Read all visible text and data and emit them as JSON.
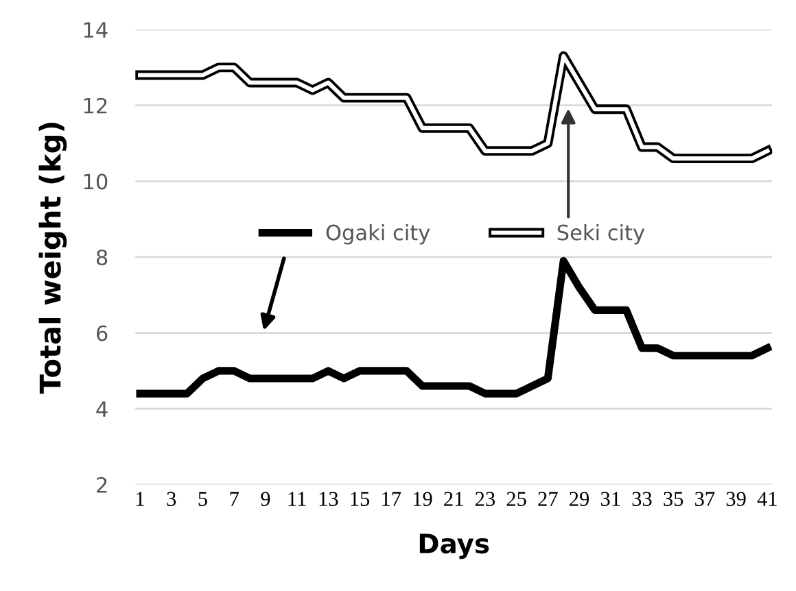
{
  "chart_data": {
    "type": "line",
    "xlabel": "Days",
    "ylabel": "Total weight (kg)",
    "categories": [
      "1",
      null,
      "3",
      null,
      "5",
      null,
      "7",
      null,
      "9",
      null,
      "11",
      null,
      "13",
      null,
      "15",
      null,
      "17",
      null,
      "19",
      null,
      "21",
      null,
      "23",
      null,
      "25",
      null,
      "27",
      null,
      "29",
      null,
      "31",
      null,
      "33",
      null,
      "35",
      null,
      "37",
      null,
      "39",
      null,
      "41"
    ],
    "series": [
      {
        "name": "Ogaki city",
        "color": "#000000",
        "values": [
          4.4,
          4.4,
          4.4,
          4.4,
          4.8,
          5.0,
          5.0,
          4.8,
          4.8,
          4.8,
          4.8,
          4.8,
          5.0,
          4.8,
          5.0,
          5.0,
          5.0,
          5.0,
          4.6,
          4.6,
          4.6,
          4.6,
          4.4,
          4.4,
          4.4,
          4.6,
          4.8,
          7.9,
          7.2,
          6.6,
          6.6,
          6.6,
          5.6,
          5.6,
          5.4,
          5.4,
          5.4,
          5.4,
          5.4,
          5.4,
          5.6
        ]
      },
      {
        "name": "Seki city",
        "color": "#000000",
        "values": [
          12.8,
          12.8,
          12.8,
          12.8,
          12.8,
          13.0,
          13.0,
          12.6,
          12.6,
          12.6,
          12.6,
          12.4,
          12.6,
          12.2,
          12.2,
          12.2,
          12.2,
          12.2,
          11.4,
          11.4,
          11.4,
          11.4,
          10.8,
          10.8,
          10.8,
          10.8,
          11.0,
          13.3,
          12.6,
          11.9,
          11.9,
          11.9,
          10.9,
          10.9,
          10.6,
          10.6,
          10.6,
          10.6,
          10.6,
          10.6,
          10.8
        ]
      }
    ],
    "ylim": [
      2,
      14
    ],
    "yticks": [
      2,
      4,
      6,
      8,
      10,
      12,
      14
    ],
    "grid": "y",
    "legend": "center",
    "marker": "none",
    "line_style": "solid"
  }
}
